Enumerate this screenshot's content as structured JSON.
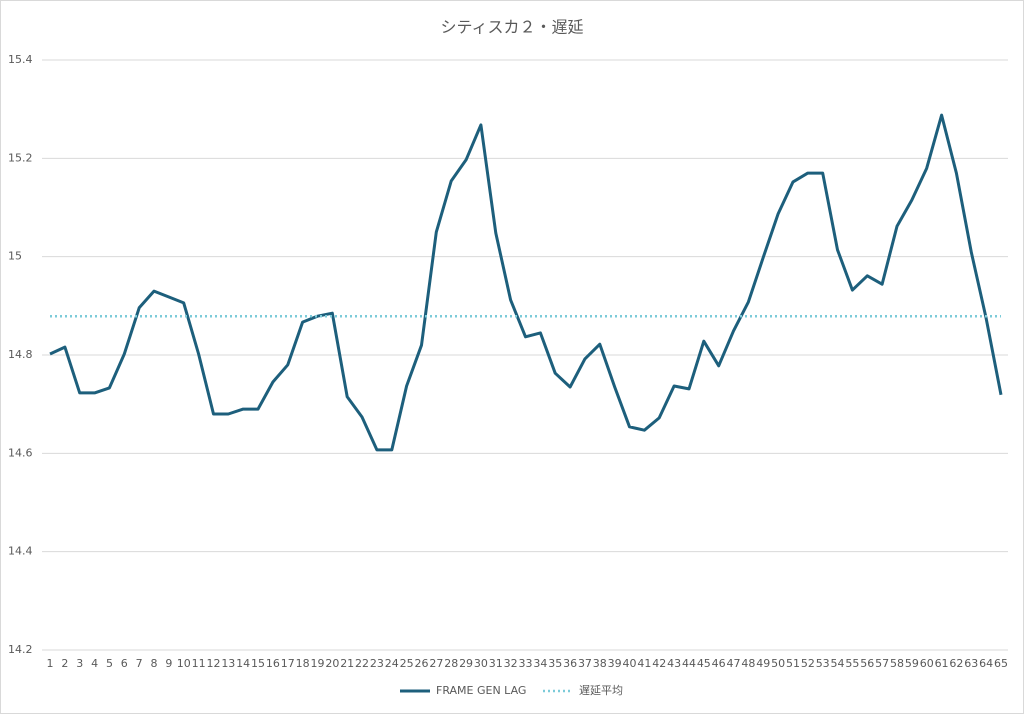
{
  "chart_data": {
    "type": "line",
    "title": "シティスカ２・遅延",
    "categories": [
      1,
      2,
      3,
      4,
      5,
      6,
      7,
      8,
      9,
      10,
      11,
      12,
      13,
      14,
      15,
      16,
      17,
      18,
      19,
      20,
      21,
      22,
      23,
      24,
      25,
      26,
      27,
      28,
      29,
      30,
      31,
      32,
      33,
      34,
      35,
      36,
      37,
      38,
      39,
      40,
      41,
      42,
      43,
      44,
      45,
      46,
      47,
      48,
      49,
      50,
      51,
      52,
      53,
      54,
      55,
      56,
      57,
      58,
      59,
      60,
      61,
      62,
      63,
      64,
      65
    ],
    "series": [
      {
        "name": "FRAME GEN LAG",
        "color": "#1d5f7c",
        "style": "solid",
        "values": [
          14.802,
          14.816,
          14.723,
          14.723,
          14.733,
          14.802,
          14.896,
          14.93,
          14.918,
          14.906,
          14.802,
          14.68,
          14.68,
          14.69,
          14.69,
          14.745,
          14.78,
          14.867,
          14.879,
          14.885,
          14.715,
          14.674,
          14.607,
          14.607,
          14.737,
          14.82,
          15.05,
          15.154,
          15.197,
          15.268,
          15.048,
          14.912,
          14.837,
          14.845,
          14.763,
          14.735,
          14.792,
          14.822,
          14.735,
          14.654,
          14.647,
          14.672,
          14.737,
          14.731,
          14.828,
          14.778,
          14.849,
          14.908,
          14.999,
          15.087,
          15.152,
          15.17,
          15.17,
          15.014,
          14.932,
          14.961,
          14.944,
          15.062,
          15.115,
          15.18,
          15.288,
          15.17,
          15.009,
          14.875,
          14.719
        ]
      },
      {
        "name": "遅延平均",
        "color": "#7ccbd9",
        "style": "dotted",
        "values": [
          14.879,
          14.879,
          14.879,
          14.879,
          14.879,
          14.879,
          14.879,
          14.879,
          14.879,
          14.879,
          14.879,
          14.879,
          14.879,
          14.879,
          14.879,
          14.879,
          14.879,
          14.879,
          14.879,
          14.879,
          14.879,
          14.879,
          14.879,
          14.879,
          14.879,
          14.879,
          14.879,
          14.879,
          14.879,
          14.879,
          14.879,
          14.879,
          14.879,
          14.879,
          14.879,
          14.879,
          14.879,
          14.879,
          14.879,
          14.879,
          14.879,
          14.879,
          14.879,
          14.879,
          14.879,
          14.879,
          14.879,
          14.879,
          14.879,
          14.879,
          14.879,
          14.879,
          14.879,
          14.879,
          14.879,
          14.879,
          14.879,
          14.879,
          14.879,
          14.879,
          14.879,
          14.879,
          14.879,
          14.879,
          14.879
        ]
      }
    ],
    "ylim": [
      14.2,
      15.4
    ],
    "yticks": [
      14.2,
      14.4,
      14.6,
      14.8,
      15,
      15.2,
      15.4
    ],
    "grid": true,
    "legend": "bottom"
  }
}
